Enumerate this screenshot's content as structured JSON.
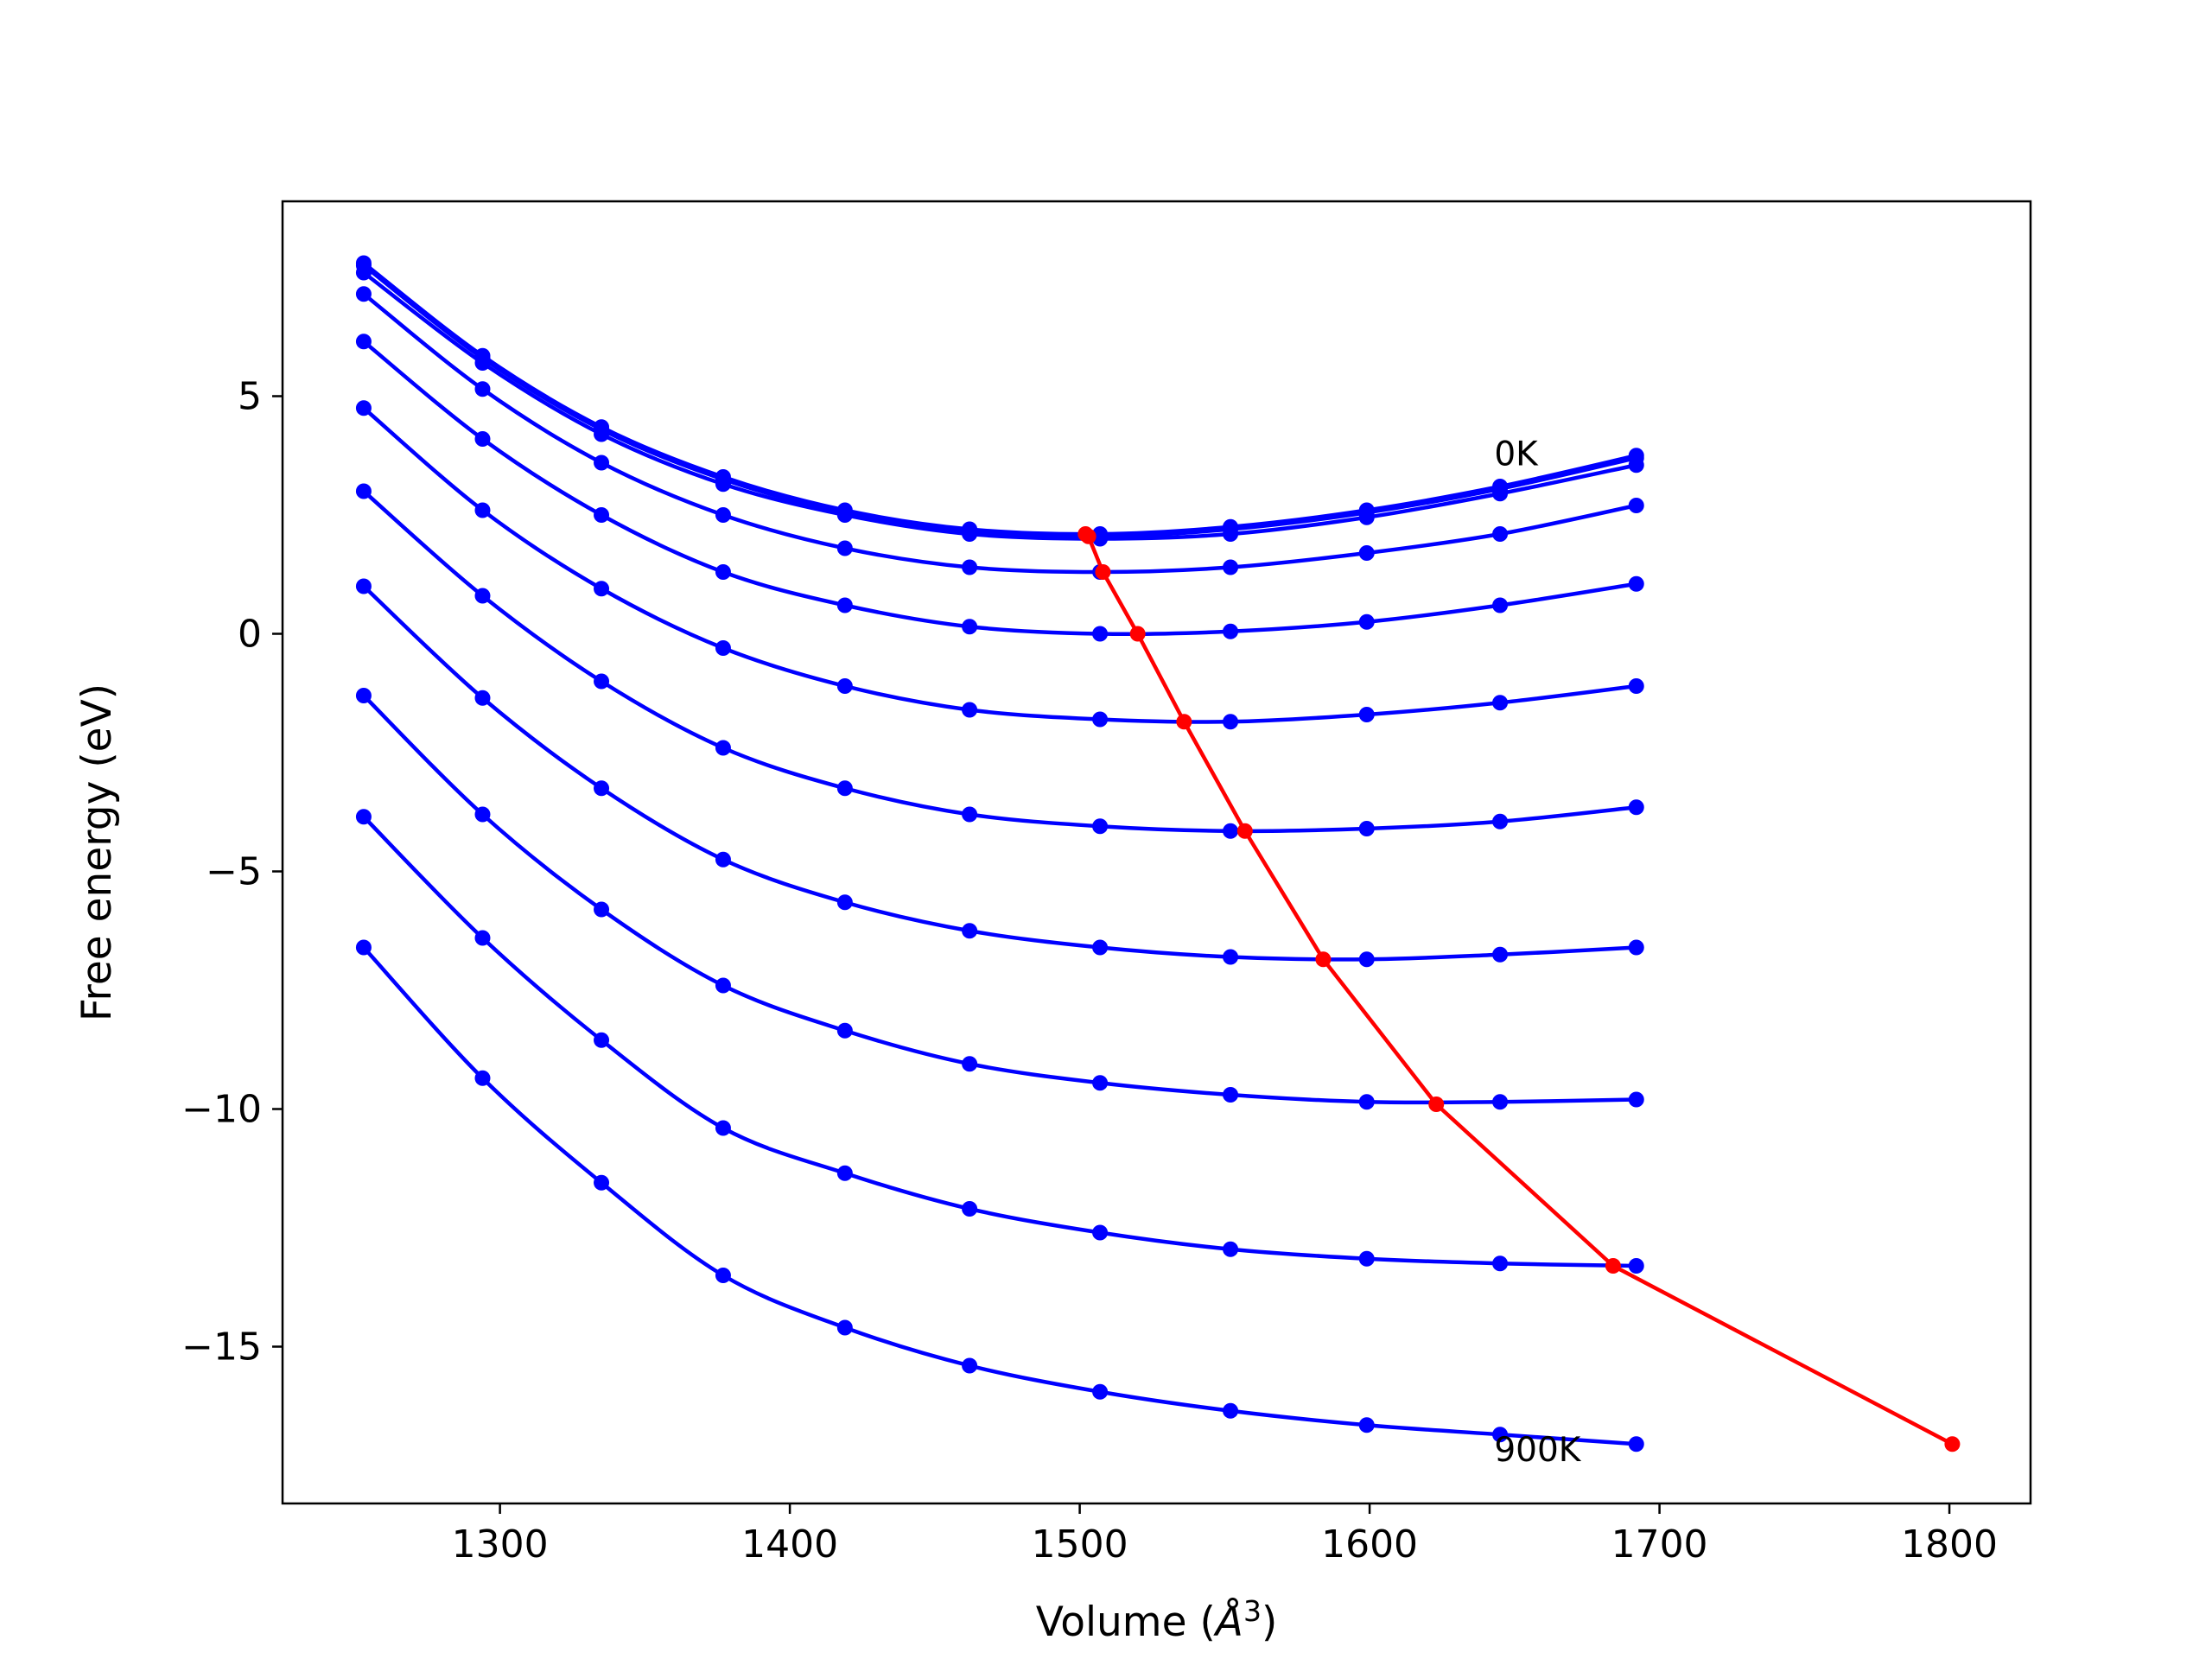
{
  "chart_data": {
    "type": "line",
    "title": "",
    "xlabel": "Volume (",
    "xlabel_unit": "Å",
    "xlabel_exp": "3",
    "xlabel_close": ")",
    "ylabel": "Free energy (eV)",
    "xlim": [
      1225,
      1828
    ],
    "ylim": [
      -18.3,
      9.1
    ],
    "xticks": [
      1300,
      1400,
      1500,
      1600,
      1700,
      1800
    ],
    "xtick_labels": [
      "1300",
      "1400",
      "1500",
      "1600",
      "1700",
      "1800"
    ],
    "yticks": [
      5,
      0,
      -5,
      -10,
      -15
    ],
    "ytick_labels": [
      "5",
      "0",
      "−5",
      "−10",
      "−15"
    ],
    "grid": false,
    "legend": "none",
    "x": [
      1253,
      1294,
      1335,
      1377,
      1419,
      1462,
      1507,
      1552,
      1599,
      1645,
      1692
    ],
    "series": [
      {
        "color": "#0000ff",
        "values": [
          7.8,
          5.85,
          4.35,
          3.3,
          2.6,
          2.2,
          2.1,
          2.25,
          2.6,
          3.1,
          3.75
        ]
      },
      {
        "color": "#0000ff",
        "values": [
          7.75,
          5.8,
          4.3,
          3.25,
          2.55,
          2.15,
          2.05,
          2.2,
          2.55,
          3.05,
          3.7
        ]
      },
      {
        "color": "#0000ff",
        "values": [
          7.6,
          5.7,
          4.2,
          3.15,
          2.5,
          2.1,
          2.0,
          2.1,
          2.45,
          2.95,
          3.55
        ]
      },
      {
        "color": "#0000ff",
        "values": [
          7.15,
          5.15,
          3.6,
          2.5,
          1.8,
          1.4,
          1.3,
          1.4,
          1.7,
          2.1,
          2.7
        ]
      },
      {
        "color": "#0000ff",
        "values": [
          6.15,
          4.1,
          2.5,
          1.3,
          0.6,
          0.15,
          0.0,
          0.05,
          0.25,
          0.6,
          1.05
        ]
      },
      {
        "color": "#0000ff",
        "values": [
          4.75,
          2.6,
          0.95,
          -0.3,
          -1.1,
          -1.6,
          -1.8,
          -1.85,
          -1.7,
          -1.45,
          -1.1
        ]
      },
      {
        "color": "#0000ff",
        "values": [
          3.0,
          0.8,
          -1.0,
          -2.4,
          -3.25,
          -3.8,
          -4.05,
          -4.15,
          -4.1,
          -3.95,
          -3.65
        ]
      },
      {
        "color": "#0000ff",
        "values": [
          1.0,
          -1.35,
          -3.25,
          -4.75,
          -5.65,
          -6.25,
          -6.6,
          -6.8,
          -6.85,
          -6.75,
          -6.6
        ]
      },
      {
        "color": "#0000ff",
        "values": [
          -1.3,
          -3.8,
          -5.8,
          -7.4,
          -8.35,
          -9.05,
          -9.45,
          -9.7,
          -9.85,
          -9.85,
          -9.8
        ]
      },
      {
        "color": "#0000ff",
        "values": [
          -3.85,
          -6.4,
          -8.55,
          -10.4,
          -11.35,
          -12.1,
          -12.6,
          -12.95,
          -13.15,
          -13.25,
          -13.3
        ]
      },
      {
        "color": "#0000ff",
        "values": [
          -6.6,
          -9.35,
          -11.55,
          -13.5,
          -14.6,
          -15.4,
          -15.95,
          -16.35,
          -16.65,
          -16.85,
          -17.05
        ]
      }
    ],
    "minima_line": {
      "color": "#ff0000",
      "x": [
        1502,
        1503,
        1508,
        1520,
        1536,
        1557,
        1584,
        1623,
        1684,
        1801
      ],
      "y": [
        2.1,
        2.05,
        1.3,
        0.0,
        -1.85,
        -4.15,
        -6.85,
        -9.9,
        -13.3,
        -17.05
      ]
    },
    "annotations": [
      {
        "text": "0K",
        "x": 1643,
        "y": 3.8
      },
      {
        "text": "900K",
        "x": 1643,
        "y": -17.15
      }
    ]
  }
}
